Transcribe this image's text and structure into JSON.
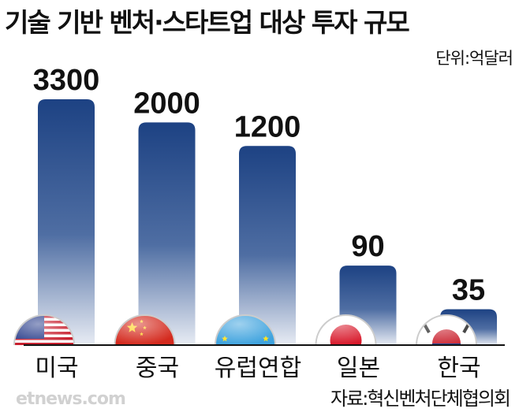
{
  "chart_data": {
    "type": "bar",
    "title": "기술 기반 벤처·스타트업 대상 투자 규모",
    "unit": "단위:억달러",
    "categories": [
      "미국",
      "중국",
      "유럽연합",
      "일본",
      "한국"
    ],
    "values": [
      3300,
      2000,
      1200,
      90,
      35
    ],
    "value_labels": [
      "3300",
      "2000",
      "1200",
      "90",
      "35"
    ],
    "flags": [
      "us-flag-icon",
      "china-flag-icon",
      "eu-flag-icon",
      "japan-flag-icon",
      "korea-flag-icon"
    ],
    "source": "자료:혁신벤처단체협의회",
    "bar_color": "#1f4a8a",
    "grid": false
  },
  "watermark": "etnews.com"
}
